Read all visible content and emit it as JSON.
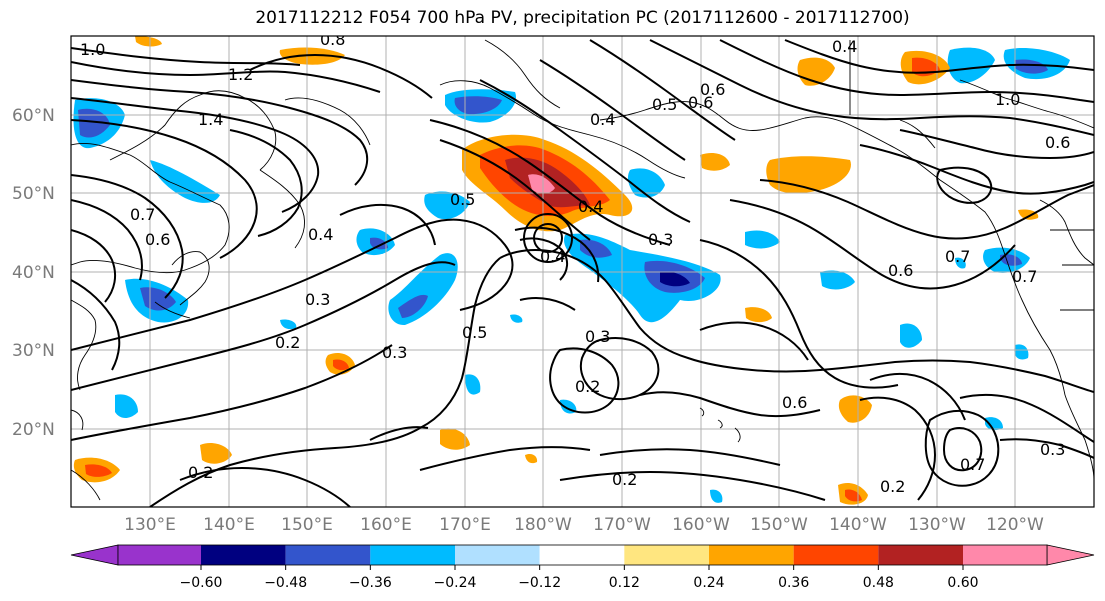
{
  "title": "2017112212 F054 700 hPa PV, precipitation PC (2017112600 - 2017112700)",
  "lat_labels": [
    "60°N",
    "50°N",
    "40°N",
    "30°N",
    "20°N"
  ],
  "lon_labels": [
    "130°E",
    "140°E",
    "150°E",
    "160°E",
    "170°E",
    "180°W",
    "170°W",
    "160°W",
    "150°W",
    "140°W",
    "130°W",
    "120°W"
  ],
  "colorbar": {
    "ticks": [
      "−0.60",
      "−0.48",
      "−0.36",
      "−0.24",
      "−0.12",
      "0.12",
      "0.24",
      "0.36",
      "0.48",
      "0.60"
    ],
    "colors": [
      "#9933cc",
      "#000080",
      "#3355cc",
      "#00bbff",
      "#b0e0ff",
      "#ffffff",
      "#ffe680",
      "#ffa500",
      "#ff4500",
      "#b22222",
      "#ff88aa"
    ]
  },
  "contour_labels": [
    "1.0",
    "1.2",
    "1.4",
    "0.8",
    "0.7",
    "0.6",
    "0.5",
    "0.4",
    "0.3",
    "0.2",
    "0.6",
    "0.3",
    "0.4",
    "0.5",
    "0.3",
    "0.2",
    "0.6",
    "0.7",
    "0.4",
    "0.6",
    "0.3",
    "0.2",
    "0.2",
    "0.6",
    "0.7",
    "0.4",
    "0.3",
    "0.5",
    "1.0",
    "0.6"
  ],
  "colors": {
    "contour": "#000000",
    "grid": "#b0b0b0",
    "coast": "#000000"
  }
}
